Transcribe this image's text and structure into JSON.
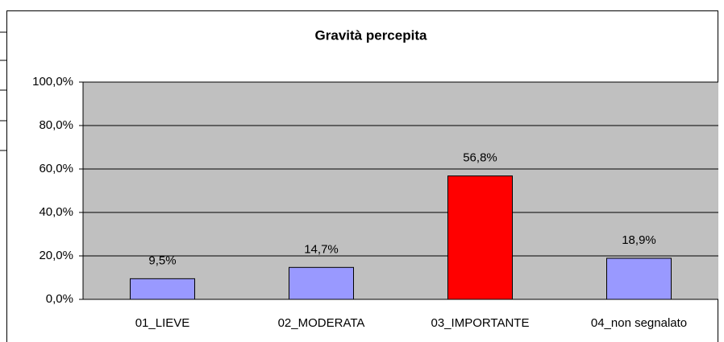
{
  "chart_data": {
    "type": "bar",
    "title": "Gravità percepita",
    "categories": [
      "01_LIEVE",
      "02_MODERATA",
      "03_IMPORTANTE",
      "04_non segnalato"
    ],
    "values": [
      9.5,
      14.7,
      56.8,
      18.9
    ],
    "value_labels": [
      "9,5%",
      "14,7%",
      "56,8%",
      "18,9%"
    ],
    "colors": [
      "#9999ff",
      "#9999ff",
      "#ff0000",
      "#9999ff"
    ],
    "ylim": [
      0,
      100
    ],
    "yticks": [
      {
        "value": 0,
        "label": "0,0%"
      },
      {
        "value": 20,
        "label": "20,0%"
      },
      {
        "value": 40,
        "label": "40,0%"
      },
      {
        "value": 60,
        "label": "60,0%"
      },
      {
        "value": 80,
        "label": "80,0%"
      },
      {
        "value": 100,
        "label": "100,0%"
      }
    ],
    "grid": true
  }
}
